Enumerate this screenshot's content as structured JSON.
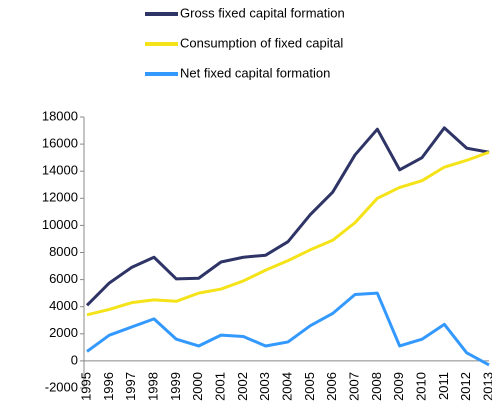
{
  "chart_data": {
    "type": "line",
    "categories": [
      "1995",
      "1996",
      "1997",
      "1998",
      "1999",
      "2000",
      "2001",
      "2002",
      "2003",
      "2004",
      "2005",
      "2006",
      "2007",
      "2008",
      "2009",
      "2010",
      "2011",
      "2012",
      "2013"
    ],
    "series": [
      {
        "name": "Gross fixed capital formation",
        "color": "#2e3466",
        "values": [
          4100,
          5750,
          6900,
          7650,
          6050,
          6100,
          7300,
          7650,
          7800,
          8800,
          10800,
          12450,
          15200,
          17100,
          14100,
          15000,
          17200,
          15700,
          15400
        ]
      },
      {
        "name": "Consumption of fixed capital",
        "color": "#f5e31a",
        "values": [
          3400,
          3800,
          4300,
          4500,
          4400,
          5000,
          5300,
          5900,
          6700,
          7400,
          8200,
          8900,
          10200,
          12000,
          12800,
          13300,
          14300,
          14800,
          15400
        ]
      },
      {
        "name": "Net fixed capital formation",
        "color": "#3399ff",
        "values": [
          700,
          1900,
          2500,
          3100,
          1600,
          1100,
          1900,
          1800,
          1100,
          1400,
          2600,
          3500,
          4900,
          5000,
          1100,
          1600,
          2700,
          600,
          -300
        ]
      }
    ],
    "ylim": [
      -2000,
      18000
    ],
    "yticks": [
      -2000,
      0,
      2000,
      4000,
      6000,
      8000,
      10000,
      12000,
      14000,
      16000,
      18000
    ],
    "grid": false,
    "legend": "top"
  }
}
